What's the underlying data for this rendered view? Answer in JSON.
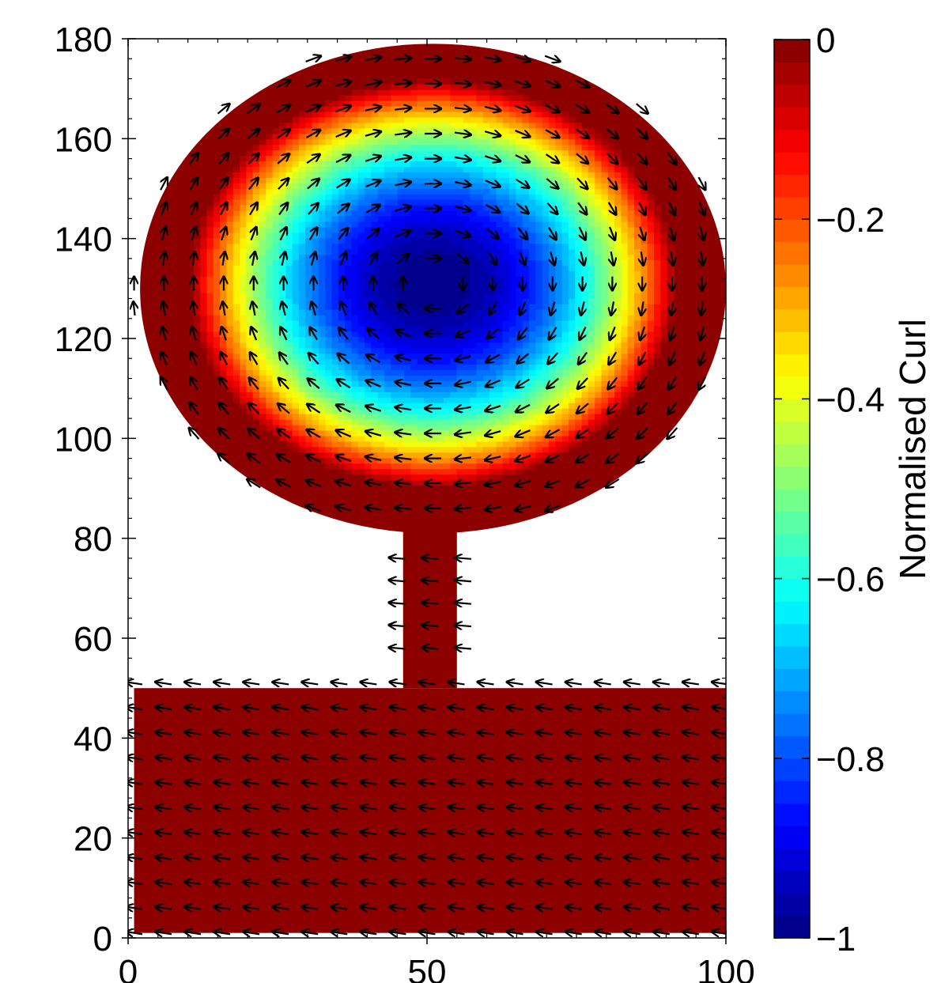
{
  "chart_data": {
    "type": "heatmap",
    "subtype": "vector-field-over-filled-contour",
    "title": "",
    "xlabel": "",
    "ylabel": "",
    "xlim": [
      0,
      100
    ],
    "ylim": [
      0,
      180
    ],
    "x_ticks": [
      0,
      50,
      100
    ],
    "y_ticks": [
      0,
      20,
      40,
      60,
      80,
      100,
      120,
      140,
      160,
      180
    ],
    "colorbar": {
      "label": "Normalised Curl",
      "range": [
        -1,
        0
      ],
      "ticks": [
        0,
        -0.2,
        -0.4,
        -0.6,
        -0.8,
        -1
      ],
      "tick_labels": [
        "0",
        "−0.2",
        "−0.4",
        "−0.6",
        "−0.8",
        "−1"
      ],
      "colormap": "jet"
    },
    "field": {
      "vortex_center": [
        51,
        131
      ],
      "min_curl_at_center": -1,
      "background_curl": 0,
      "regions": [
        {
          "name": "lower rectangle",
          "x": [
            1,
            100
          ],
          "y": [
            1,
            50
          ]
        },
        {
          "name": "connecting channel",
          "x": [
            46,
            55
          ],
          "y": [
            50,
            83
          ]
        },
        {
          "name": "upper ellipse",
          "center": [
            51,
            130
          ],
          "semi_axes": [
            49,
            49
          ]
        }
      ],
      "rotation": "clockwise",
      "lower_flow_direction": "left"
    },
    "grid": false,
    "legend": "colorbar-right"
  }
}
